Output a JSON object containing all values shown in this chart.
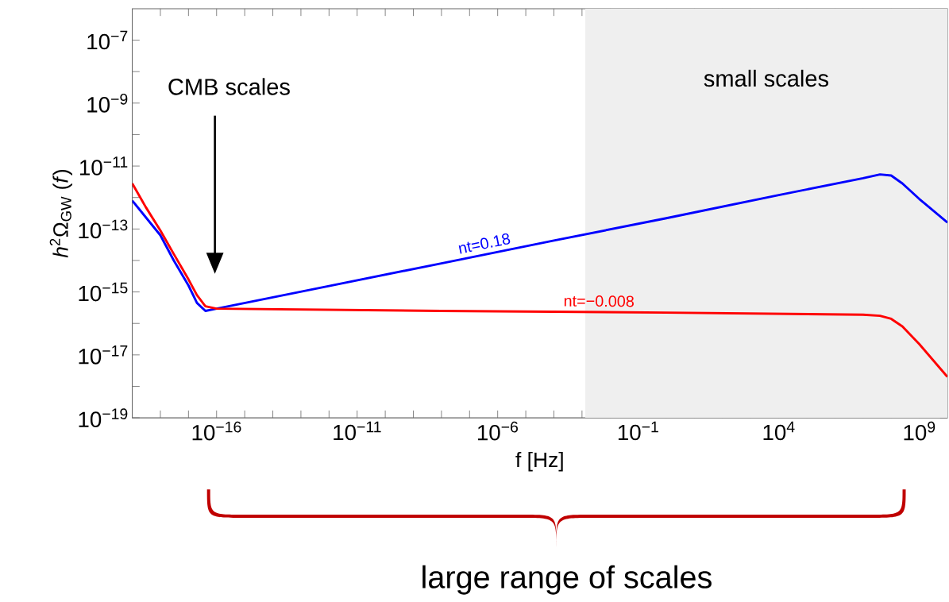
{
  "chart_data": {
    "type": "line",
    "xlabel": "f [Hz]",
    "ylabel": "*h*$^{2}$Ω$_{GW}$ (*f*)",
    "log": "xy",
    "xlim": [
      1e-19,
      10000000000.0
    ],
    "ylim": [
      1e-19,
      1e-06
    ],
    "xticks": [
      {
        "value": 1e-18,
        "label": null
      },
      {
        "value": 1e-17,
        "label": null
      },
      {
        "value": 1e-16,
        "label": "10$^{−16}$"
      },
      {
        "value": 1e-15,
        "label": null
      },
      {
        "value": 1e-14,
        "label": null
      },
      {
        "value": 1e-13,
        "label": null
      },
      {
        "value": 1e-12,
        "label": null
      },
      {
        "value": 1e-11,
        "label": "10$^{−11}$"
      },
      {
        "value": 1e-10,
        "label": null
      },
      {
        "value": 1e-09,
        "label": null
      },
      {
        "value": 1e-08,
        "label": null
      },
      {
        "value": 1e-07,
        "label": null
      },
      {
        "value": 1e-06,
        "label": "10$^{−6}$"
      },
      {
        "value": 1e-05,
        "label": null
      },
      {
        "value": 0.0001,
        "label": null
      },
      {
        "value": 0.001,
        "label": null
      },
      {
        "value": 0.01,
        "label": null
      },
      {
        "value": 0.1,
        "label": "10$^{−1}$"
      },
      {
        "value": 1,
        "label": null
      },
      {
        "value": 10,
        "label": null
      },
      {
        "value": 100,
        "label": null
      },
      {
        "value": 1000,
        "label": null
      },
      {
        "value": 10000,
        "label": "10$^{4}$"
      },
      {
        "value": 100000.0,
        "label": null
      },
      {
        "value": 1000000.0,
        "label": null
      },
      {
        "value": 10000000.0,
        "label": null
      },
      {
        "value": 100000000.0,
        "label": null
      },
      {
        "value": 1000000000.0,
        "label": "10$^{9}$"
      }
    ],
    "yticks": [
      {
        "value": 1e-07,
        "label": "10$^{−7}$"
      },
      {
        "value": 1e-08,
        "label": null
      },
      {
        "value": 1e-09,
        "label": "10$^{−9}$"
      },
      {
        "value": 1e-10,
        "label": null
      },
      {
        "value": 1e-11,
        "label": "10$^{−11}$"
      },
      {
        "value": 1e-12,
        "label": null
      },
      {
        "value": 1e-13,
        "label": "10$^{−13}$"
      },
      {
        "value": 1e-14,
        "label": null
      },
      {
        "value": 1e-15,
        "label": "10$^{−15}$"
      },
      {
        "value": 1e-16,
        "label": null
      },
      {
        "value": 1e-17,
        "label": "10$^{−17}$"
      },
      {
        "value": 1e-18,
        "label": null
      },
      {
        "value": 1e-19,
        "label": "10$^{−19}$"
      }
    ],
    "bands": [
      {
        "axis": "x",
        "from": 0.0013,
        "to": 10000000000.0,
        "label": "small scales",
        "color": "#efefef"
      }
    ],
    "annotations": [
      "CMB scales",
      "large range of scales"
    ],
    "series": [
      {
        "name": "nt=0.18",
        "color": "#0000ff",
        "x": [
          1e-19,
          1e-18,
          3e-18,
          1e-17,
          2e-17,
          4e-17,
          1e-16,
          1e-12,
          1e-08,
          0.0001,
          1,
          10000.0,
          10000000.0,
          40000000.0,
          100000000.0,
          250000000.0,
          1000000000.0,
          10000000000.0
        ],
        "values": [
          8e-13,
          6.3e-14,
          1e-14,
          1.6e-15,
          4.5e-16,
          2.5e-16,
          2.95e-16,
          1.55e-15,
          8.1e-15,
          4.3e-14,
          2.2e-13,
          1.2e-12,
          4.1e-12,
          5.4e-12,
          5e-12,
          2.8e-12,
          9e-13,
          1.6e-13
        ]
      },
      {
        "name": "nt=−0.008",
        "color": "#ff0000",
        "x": [
          1e-19,
          3e-19,
          1e-18,
          3e-18,
          1e-17,
          2e-17,
          4e-17,
          1e-16,
          1e-08,
          1,
          10000000.0,
          40000000.0,
          100000000.0,
          250000000.0,
          1000000000.0,
          10000000000.0
        ],
        "values": [
          2.8e-12,
          5e-13,
          8.9e-14,
          1.6e-14,
          2.5e-15,
          7.9e-16,
          3.5e-16,
          2.95e-16,
          2.5e-16,
          2.2e-16,
          1.9e-16,
          1.75e-16,
          1.4e-16,
          8e-17,
          2.2e-17,
          2e-18
        ]
      }
    ]
  }
}
